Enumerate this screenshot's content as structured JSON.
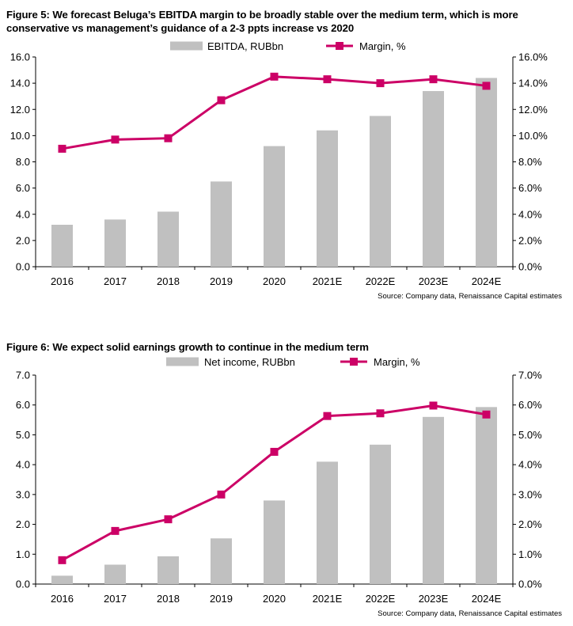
{
  "colors": {
    "bar": "#c0c0c0",
    "line": "#cc0066",
    "axis": "#000000"
  },
  "chart_data": [
    {
      "type": "bar+line",
      "title": "Figure 5: We forecast Beluga’s EBITDA margin to be broadly stable over the medium term, which is more conservative vs management’s guidance of a 2-3 ppts increase vs 2020",
      "categories": [
        "2016",
        "2017",
        "2018",
        "2019",
        "2020",
        "2021E",
        "2022E",
        "2023E",
        "2024E"
      ],
      "series": [
        {
          "name": "EBITDA, RUBbn",
          "kind": "bar",
          "axis": "left",
          "values": [
            3.2,
            3.6,
            4.2,
            6.5,
            9.2,
            10.4,
            11.5,
            13.4,
            14.4
          ]
        },
        {
          "name": "Margin, %",
          "kind": "line",
          "axis": "right",
          "values": [
            9.0,
            9.7,
            9.8,
            12.7,
            14.5,
            14.3,
            14.0,
            14.3,
            13.8
          ]
        }
      ],
      "ylim_left": [
        0,
        16
      ],
      "ylim_right": [
        0,
        16
      ],
      "yticks_left": [
        "0.0",
        "2.0",
        "4.0",
        "6.0",
        "8.0",
        "10.0",
        "12.0",
        "14.0",
        "16.0"
      ],
      "yticks_right": [
        "0.0%",
        "2.0%",
        "4.0%",
        "6.0%",
        "8.0%",
        "10.0%",
        "12.0%",
        "14.0%",
        "16.0%"
      ],
      "grid": false,
      "legend": "top-center",
      "source": "Source: Company data, Renaissance Capital estimates"
    },
    {
      "type": "bar+line",
      "title": "Figure 6: We expect solid earnings growth to continue in the medium term",
      "categories": [
        "2016",
        "2017",
        "2018",
        "2019",
        "2020",
        "2021E",
        "2022E",
        "2023E",
        "2024E"
      ],
      "series": [
        {
          "name": "Net income, RUBbn",
          "kind": "bar",
          "axis": "left",
          "values": [
            0.28,
            0.65,
            0.93,
            1.53,
            2.8,
            4.1,
            4.67,
            5.6,
            5.93
          ]
        },
        {
          "name": "Margin, %",
          "kind": "line",
          "axis": "right",
          "values": [
            0.8,
            1.78,
            2.17,
            3.0,
            4.43,
            5.63,
            5.72,
            5.98,
            5.68
          ]
        }
      ],
      "ylim_left": [
        0,
        7
      ],
      "ylim_right": [
        0,
        7
      ],
      "yticks_left": [
        "0.0",
        "1.0",
        "2.0",
        "3.0",
        "4.0",
        "5.0",
        "6.0",
        "7.0"
      ],
      "yticks_right": [
        "0.0%",
        "1.0%",
        "2.0%",
        "3.0%",
        "4.0%",
        "5.0%",
        "6.0%",
        "7.0%"
      ],
      "grid": false,
      "legend": "top-center",
      "source": "Source: Company data, Renaissance Capital estimates"
    }
  ]
}
